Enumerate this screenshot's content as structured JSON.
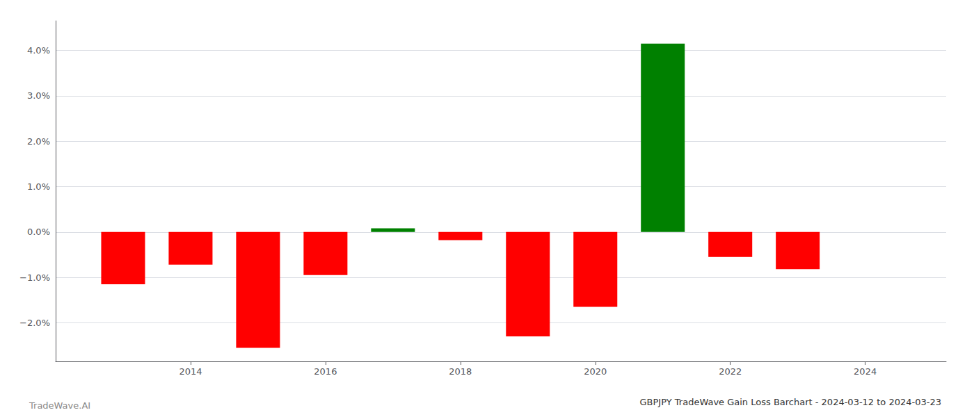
{
  "chart_data": {
    "type": "bar",
    "title": "GBPJPY TradeWave Gain Loss Barchart - 2024-03-12 to 2024-03-23",
    "annotations": [
      "TradeWave.AI"
    ],
    "x": [
      2013,
      2014,
      2015,
      2016,
      2017,
      2018,
      2019,
      2020,
      2021,
      2022,
      2023
    ],
    "values": [
      -1.15,
      -0.72,
      -2.55,
      -0.95,
      0.08,
      -0.18,
      -2.3,
      -1.65,
      4.15,
      -0.55,
      -0.82
    ],
    "colors": [
      "#ff0000",
      "#ff0000",
      "#ff0000",
      "#ff0000",
      "#008000",
      "#ff0000",
      "#ff0000",
      "#ff0000",
      "#008000",
      "#ff0000",
      "#ff0000"
    ],
    "xlim": [
      2012.0,
      2025.2
    ],
    "xticks": [
      2014,
      2016,
      2018,
      2020,
      2022,
      2024
    ],
    "ylim": [
      -2.85,
      4.65
    ],
    "yticks": [
      {
        "value": -2.0,
        "label": "−2.0%"
      },
      {
        "value": -1.0,
        "label": "−1.0%"
      },
      {
        "value": 0.0,
        "label": "0.0%"
      },
      {
        "value": 1.0,
        "label": "1.0%"
      },
      {
        "value": 2.0,
        "label": "2.0%"
      },
      {
        "value": 3.0,
        "label": "3.0%"
      },
      {
        "value": 4.0,
        "label": "4.0%"
      }
    ],
    "grid": true
  }
}
